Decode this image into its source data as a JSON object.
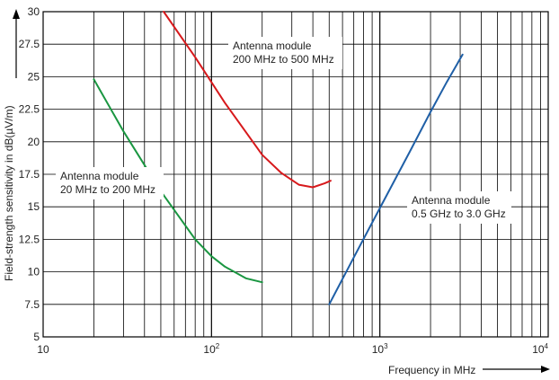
{
  "chart_data": {
    "type": "line",
    "xlabel": "Frequency in MHz",
    "ylabel": "Field-strength sensitivity in dB(µV/m)",
    "x_scale": "log",
    "xlim": [
      10,
      10000
    ],
    "ylim": [
      5,
      30
    ],
    "grid": true,
    "x_ticks": [
      {
        "value": 10,
        "base": "10",
        "exp": ""
      },
      {
        "value": 100,
        "base": "10",
        "exp": "2"
      },
      {
        "value": 1000,
        "base": "10",
        "exp": "3"
      },
      {
        "value": 10000,
        "base": "10",
        "exp": "4"
      }
    ],
    "y_ticks": [
      5,
      7.5,
      10,
      12.5,
      15,
      17.5,
      20,
      22.5,
      25,
      27.5,
      30
    ],
    "y_tick_labels": [
      "5",
      "7.5",
      "10",
      "12.5",
      "15",
      "17.5",
      "20",
      "22.5",
      "25",
      "27.5",
      "30"
    ],
    "series": [
      {
        "color": "#1a9641",
        "x": [
          20,
          30,
          50,
          80,
          100,
          120,
          160,
          200
        ],
        "y": [
          24.8,
          20.8,
          16.2,
          12.5,
          11.2,
          10.4,
          9.5,
          9.2
        ]
      },
      {
        "color": "#d7191c",
        "x": [
          52,
          80,
          120,
          200,
          260,
          330,
          400,
          470,
          510
        ],
        "y": [
          30,
          26.5,
          23.0,
          19.0,
          17.6,
          16.7,
          16.5,
          16.8,
          17.0
        ]
      },
      {
        "color": "#1f5fa6",
        "x": [
          500,
          700,
          1000,
          1500,
          2000,
          2500,
          3100
        ],
        "y": [
          7.5,
          11.1,
          14.9,
          19.2,
          22.3,
          24.6,
          26.7
        ]
      }
    ],
    "annotations": [
      {
        "lines": [
          "Antenna module",
          "20 MHz to 200 MHz"
        ]
      },
      {
        "lines": [
          "Antenna module",
          "200 MHz to 500 MHz"
        ]
      },
      {
        "lines": [
          "Antenna module",
          "0.5 GHz to 3.0 GHz"
        ]
      }
    ]
  }
}
